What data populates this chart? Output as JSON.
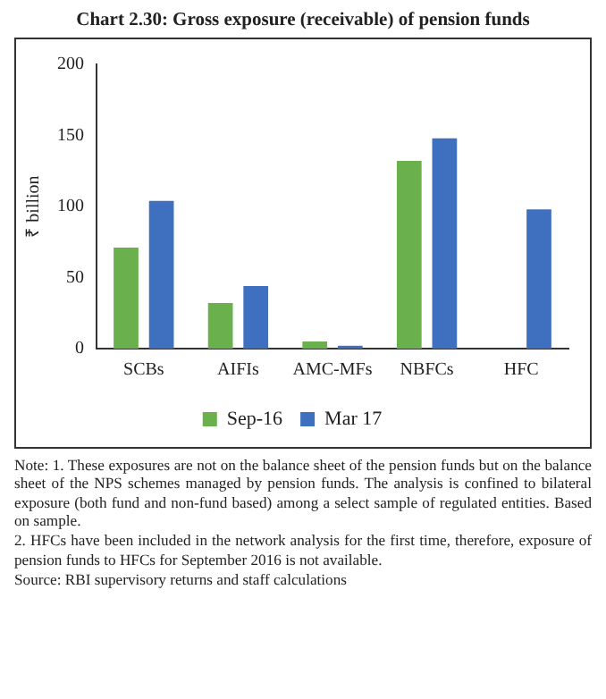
{
  "chart_data": {
    "type": "bar",
    "title": "Chart 2.30: Gross exposure (receivable) of pension funds",
    "categories": [
      "SCBs",
      "AIFIs",
      "AMC-MFs",
      "NBFCs",
      "HFC"
    ],
    "series": [
      {
        "name": "Sep-16",
        "color": "#6ab04c",
        "values": [
          71,
          32,
          5,
          132,
          null
        ]
      },
      {
        "name": "Mar 17",
        "color": "#3f6fbf",
        "values": [
          104,
          44,
          2,
          148,
          98
        ]
      }
    ],
    "ylabel": "₹ billion",
    "ylim": [
      0,
      200
    ],
    "yticks": [
      0,
      50,
      100,
      150,
      200
    ],
    "grid": false,
    "legend": "bottom",
    "annotations": [
      "Note: 1. These exposures are not on the balance sheet of the pension funds but on the balance sheet of the NPS schemes managed by pension funds. The analysis is confined to bilateral exposure (both fund and non-fund based) among a select sample of regulated entities. Based on sample.",
      "2. HFCs have been included in the network analysis for the first time, therefore, exposure of pension funds to HFCs for September 2016 is not available.",
      "Source: RBI supervisory returns and staff calculations"
    ]
  }
}
